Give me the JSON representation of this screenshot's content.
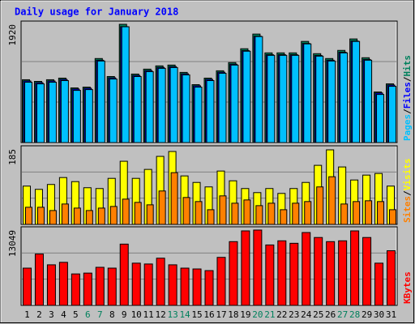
{
  "chart_data": [
    {
      "type": "bar",
      "title": "Daily usage for January 2018",
      "categories": [
        "1",
        "2",
        "3",
        "4",
        "5",
        "6",
        "7",
        "8",
        "9",
        "10",
        "11",
        "12",
        "13",
        "14",
        "15",
        "16",
        "17",
        "18",
        "19",
        "20",
        "21",
        "22",
        "23",
        "24",
        "25",
        "26",
        "27",
        "28",
        "29",
        "30",
        "31"
      ],
      "weekend": [
        false,
        false,
        false,
        false,
        false,
        true,
        true,
        false,
        false,
        false,
        false,
        false,
        true,
        true,
        false,
        false,
        false,
        false,
        false,
        true,
        true,
        false,
        false,
        false,
        false,
        false,
        true,
        true,
        false,
        false,
        false
      ],
      "separator": "/",
      "ylim": [
        0,
        1920
      ],
      "yticks": [
        1920
      ],
      "grid": true,
      "series": [
        {
          "name": "Hits",
          "color": "#00805c",
          "values": [
            1020,
            993,
            1020,
            1046,
            887,
            900,
            1364,
            1072,
            1920,
            1112,
            1192,
            1245,
            1258,
            1139,
            940,
            1046,
            1165,
            1298,
            1523,
            1761,
            1456,
            1456,
            1456,
            1642,
            1443,
            1364,
            1496,
            1682,
            1377,
            821,
            953
          ]
        },
        {
          "name": "Files",
          "color": "#0000ff",
          "values": [
            1000,
            973,
            1000,
            1025,
            869,
            882,
            1337,
            1051,
            1882,
            1090,
            1168,
            1220,
            1233,
            1116,
            921,
            1025,
            1142,
            1272,
            1493,
            1726,
            1427,
            1427,
            1427,
            1609,
            1414,
            1337,
            1466,
            1648,
            1349,
            805,
            934
          ]
        },
        {
          "name": "Pages",
          "color": "#00c0ff",
          "values": [
            980,
            953,
            980,
            1006,
            847,
            860,
            1324,
            1032,
            1880,
            1072,
            1152,
            1205,
            1218,
            1099,
            900,
            1006,
            1125,
            1258,
            1483,
            1721,
            1416,
            1416,
            1416,
            1602,
            1403,
            1324,
            1456,
            1642,
            1337,
            781,
            913
          ]
        }
      ]
    },
    {
      "type": "bar",
      "ylim": [
        0,
        185
      ],
      "yticks": [
        185
      ],
      "grid": true,
      "series": [
        {
          "name": "Visits",
          "color": "#ffff00",
          "values": [
            94,
            86,
            98,
            115,
            105,
            90,
            88,
            113,
            155,
            113,
            135,
            167,
            179,
            119,
            103,
            92,
            131,
            107,
            88,
            78,
            88,
            76,
            88,
            103,
            145,
            183,
            141,
            109,
            121,
            125,
            94
          ]
        },
        {
          "name": "Sites",
          "color": "#ff8000",
          "values": [
            42,
            42,
            34,
            50,
            40,
            34,
            40,
            44,
            62,
            54,
            48,
            82,
            127,
            66,
            56,
            36,
            70,
            52,
            60,
            46,
            52,
            36,
            52,
            56,
            92,
            117,
            50,
            56,
            58,
            56,
            36
          ]
        }
      ]
    },
    {
      "type": "bar",
      "ylim": [
        0,
        13049
      ],
      "yticks": [
        13049
      ],
      "grid": true,
      "series": [
        {
          "name": "KBytes",
          "color": "#ff0000",
          "values": [
            6453,
            8891,
            7027,
            7457,
            5449,
            5593,
            6596,
            6453,
            10612,
            7313,
            7170,
            8174,
            7027,
            6453,
            6310,
            6023,
            8317,
            11042,
            12906,
            13049,
            10468,
            11185,
            10755,
            12619,
            11759,
            11042,
            11185,
            12906,
            11759,
            7313,
            9464
          ]
        }
      ]
    }
  ]
}
